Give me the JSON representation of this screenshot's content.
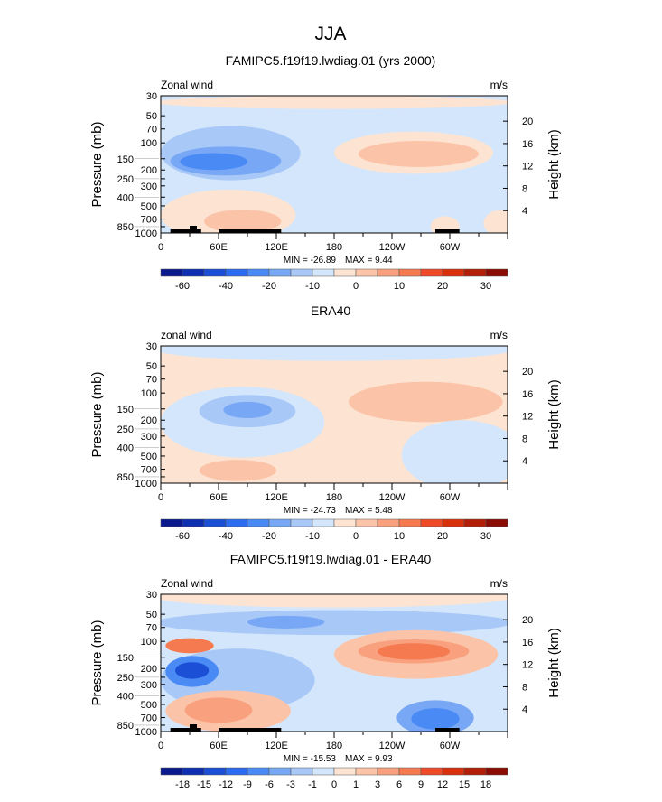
{
  "chart_data": {
    "type": "heatmap",
    "title": "JJA",
    "palette_main": [
      "#0a1a8c",
      "#0d2fb0",
      "#1a4fd6",
      "#2c6cf0",
      "#4a8af5",
      "#78a8f5",
      "#a8c8f8",
      "#d4e6fb",
      "#fde4d2",
      "#fbc4a8",
      "#f9a07e",
      "#f57a50",
      "#ef4a28",
      "#d9300c",
      "#b21e08",
      "#8a0c04"
    ],
    "x_ticks": [
      {
        "lon": 0,
        "label": "0"
      },
      {
        "lon": 60,
        "label": "60E"
      },
      {
        "lon": 120,
        "label": "120E"
      },
      {
        "lon": 180,
        "label": "180"
      },
      {
        "lon": 240,
        "label": "120W"
      },
      {
        "lon": 300,
        "label": "60W"
      }
    ],
    "y_ticks": [
      30,
      50,
      70,
      100,
      150,
      200,
      250,
      300,
      400,
      500,
      700,
      850,
      1000
    ],
    "y_label": "Pressure (mb)",
    "y2_label": "Height (km)",
    "y2_ticks": [
      {
        "km": 4,
        "label": "4"
      },
      {
        "km": 8,
        "label": "8"
      },
      {
        "km": 12,
        "label": "12"
      },
      {
        "km": 16,
        "label": "16"
      },
      {
        "km": 20,
        "label": "20"
      }
    ],
    "xlim": [
      0,
      360
    ],
    "ylim": [
      1000,
      30
    ],
    "panels": [
      {
        "title": "FAMIPC5.f19f19.lwdiag.01 (yrs 2000)",
        "left_label": "Zonal wind",
        "units": "m/s",
        "min_label": "MIN = -26.89",
        "max_label": "MAX =    9.44",
        "levels": [
          "-60",
          "",
          "-40",
          "",
          "-20",
          "",
          "-10",
          "",
          "0",
          "",
          "10",
          "",
          "20",
          "",
          "30"
        ],
        "background_level": 7,
        "topography": true,
        "blobs": [
          {
            "lon": [
              -5,
              365
            ],
            "p": [
              30,
              42
            ],
            "level": 8
          },
          {
            "lon": [
              180,
              345
            ],
            "p": [
              75,
              220
            ],
            "level": 8
          },
          {
            "lon": [
              205,
              330
            ],
            "p": [
              95,
              185
            ],
            "level": 9
          },
          {
            "lon": [
              0,
              145
            ],
            "p": [
              65,
              260
            ],
            "level": 6
          },
          {
            "lon": [
              10,
              125
            ],
            "p": [
              110,
              230
            ],
            "level": 5
          },
          {
            "lon": [
              20,
              90
            ],
            "p": [
              130,
              200
            ],
            "level": 4
          },
          {
            "lon": [
              0,
              140
            ],
            "p": [
              330,
              1200
            ],
            "level": 8
          },
          {
            "lon": [
              45,
              125
            ],
            "p": [
              550,
              1000
            ],
            "level": 9
          },
          {
            "lon": [
              280,
              310
            ],
            "p": [
              650,
              1100
            ],
            "level": 8
          },
          {
            "lon": [
              335,
              375
            ],
            "p": [
              550,
              1100
            ],
            "level": 8
          }
        ]
      },
      {
        "title": "ERA40",
        "left_label": "zonal wind",
        "units": "m/s",
        "min_label": "MIN = -24.73",
        "max_label": "MAX =    5.48",
        "levels": [
          "-60",
          "",
          "-40",
          "",
          "-20",
          "",
          "-10",
          "",
          "0",
          "",
          "10",
          "",
          "20",
          "",
          "30"
        ],
        "background_level": 8,
        "topography": false,
        "blobs": [
          {
            "lon": [
              -5,
              365
            ],
            "p": [
              25,
              44
            ],
            "level": 7
          },
          {
            "lon": [
              195,
              355
            ],
            "p": [
              75,
              210
            ],
            "level": 9
          },
          {
            "lon": [
              0,
              170
            ],
            "p": [
              85,
              520
            ],
            "level": 7
          },
          {
            "lon": [
              40,
              140
            ],
            "p": [
              105,
              240
            ],
            "level": 6
          },
          {
            "lon": [
              65,
              115
            ],
            "p": [
              125,
              190
            ],
            "level": 5
          },
          {
            "lon": [
              250,
              375
            ],
            "p": [
              200,
              1200
            ],
            "level": 7
          },
          {
            "lon": [
              40,
              120
            ],
            "p": [
              550,
              950
            ],
            "level": 9
          }
        ]
      },
      {
        "title": "FAMIPC5.f19f19.lwdiag.01 - ERA40",
        "left_label": "Zonal wind",
        "units": "m/s",
        "min_label": "MIN = -15.53",
        "max_label": "MAX =    9.93",
        "levels": [
          "-18",
          "-15",
          "-12",
          "-9",
          "-6",
          "-3",
          "-1",
          "0",
          "1",
          "3",
          "6",
          "9",
          "12",
          "15",
          "18"
        ],
        "background_level": 7,
        "topography": true,
        "blobs": [
          {
            "lon": [
              -5,
              365
            ],
            "p": [
              25,
              42
            ],
            "level": 8
          },
          {
            "lon": [
              -5,
              365
            ],
            "p": [
              45,
              85
            ],
            "level": 6
          },
          {
            "lon": [
              90,
              170
            ],
            "p": [
              52,
              72
            ],
            "level": 5
          },
          {
            "lon": [
              0,
              160
            ],
            "p": [
              120,
              600
            ],
            "level": 6
          },
          {
            "lon": [
              180,
              350
            ],
            "p": [
              75,
              260
            ],
            "level": 9
          },
          {
            "lon": [
              205,
              320
            ],
            "p": [
              95,
              175
            ],
            "level": 10
          },
          {
            "lon": [
              225,
              300
            ],
            "p": [
              105,
              160
            ],
            "level": 11
          },
          {
            "lon": [
              5,
              55
            ],
            "p": [
              92,
              135
            ],
            "level": 11
          },
          {
            "lon": [
              5,
              60
            ],
            "p": [
              145,
              320
            ],
            "level": 4
          },
          {
            "lon": [
              15,
              50
            ],
            "p": [
              170,
              260
            ],
            "level": 2
          },
          {
            "lon": [
              5,
              135
            ],
            "p": [
              350,
              1000
            ],
            "level": 9
          },
          {
            "lon": [
              25,
              95
            ],
            "p": [
              420,
              800
            ],
            "level": 10
          },
          {
            "lon": [
              245,
              325
            ],
            "p": [
              450,
              1100
            ],
            "level": 5
          },
          {
            "lon": [
              260,
              310
            ],
            "p": [
              550,
              950
            ],
            "level": 4
          }
        ]
      }
    ]
  }
}
